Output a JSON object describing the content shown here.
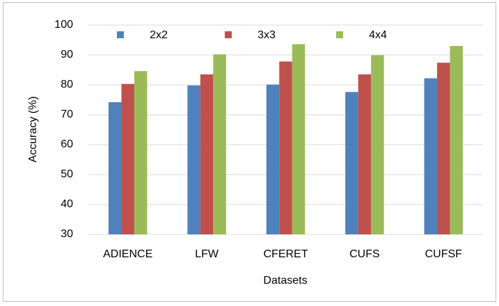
{
  "chart_data": {
    "type": "bar",
    "x_label": "Datasets",
    "y_label": "Accuracy (%)",
    "categories": [
      "ADIENCE",
      "LFW",
      "CFERET",
      "CUFS",
      "CUFSF"
    ],
    "series": [
      {
        "name": "2x2",
        "color": "#4f81bd",
        "values": [
          74.2,
          79.8,
          80.1,
          77.6,
          82.2
        ]
      },
      {
        "name": "3x3",
        "color": "#c0504d",
        "values": [
          80.3,
          83.5,
          87.8,
          83.5,
          87.4
        ]
      },
      {
        "name": "4x4",
        "color": "#9bbb59",
        "values": [
          84.6,
          90.2,
          93.6,
          89.9,
          93.0
        ]
      }
    ],
    "ylim": [
      30,
      100
    ],
    "yticks": [
      30,
      40,
      50,
      60,
      70,
      80,
      90,
      100
    ],
    "grid": true,
    "legend": "top"
  }
}
